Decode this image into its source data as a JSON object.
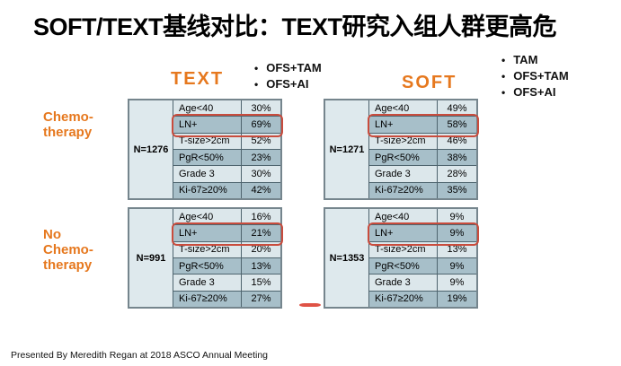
{
  "title": "SOFT/TEXT基线对比：TEXT研究入组人群更高危",
  "footer": "Presented By Meredith Regan at 2018 ASCO Annual Meeting",
  "colors": {
    "accent_orange": "#E6781E",
    "row_light": "#DCE7EB",
    "row_dark": "#A7BFC9",
    "grid_line": "#4E646E",
    "outer_border": "#75858D",
    "highlight_red": "#C94C3D"
  },
  "groups": {
    "text": {
      "label": "TEXT",
      "arms": [
        "OFS+TAM",
        "OFS+AI"
      ]
    },
    "soft": {
      "label": "SOFT",
      "arms": [
        "TAM",
        "OFS+TAM",
        "OFS+AI"
      ]
    }
  },
  "side_labels": {
    "chemo": [
      "Chemo-",
      "therapy"
    ],
    "no_chemo": [
      "No",
      "Chemo-",
      "therapy"
    ]
  },
  "tables": [
    {
      "group": "TEXT",
      "therapy": "Chemotherapy",
      "n": "N=1276",
      "rows": [
        {
          "label": "Age<40",
          "value": "30%"
        },
        {
          "label": "LN+",
          "value": "69%",
          "highlight": true
        },
        {
          "label": "T-size>2cm",
          "value": "52%"
        },
        {
          "label": "PgR<50%",
          "value": "23%"
        },
        {
          "label": "Grade 3",
          "value": "30%"
        },
        {
          "label": "Ki-67≥20%",
          "value": "42%"
        }
      ]
    },
    {
      "group": "SOFT",
      "therapy": "Chemotherapy",
      "n": "N=1271",
      "rows": [
        {
          "label": "Age<40",
          "value": "49%"
        },
        {
          "label": "LN+",
          "value": "58%",
          "highlight": true
        },
        {
          "label": "T-size>2cm",
          "value": "46%"
        },
        {
          "label": "PgR<50%",
          "value": "38%"
        },
        {
          "label": "Grade 3",
          "value": "28%"
        },
        {
          "label": "Ki-67≥20%",
          "value": "35%"
        }
      ]
    },
    {
      "group": "TEXT",
      "therapy": "No Chemotherapy",
      "n": "N=991",
      "rows": [
        {
          "label": "Age<40",
          "value": "16%"
        },
        {
          "label": "LN+",
          "value": "21%",
          "highlight": true
        },
        {
          "label": "T-size>2cm",
          "value": "20%"
        },
        {
          "label": "PgR<50%",
          "value": "13%"
        },
        {
          "label": "Grade 3",
          "value": "15%"
        },
        {
          "label": "Ki-67≥20%",
          "value": "27%"
        }
      ]
    },
    {
      "group": "SOFT",
      "therapy": "No Chemotherapy",
      "n": "N=1353",
      "rows": [
        {
          "label": "Age<40",
          "value": "9%"
        },
        {
          "label": "LN+",
          "value": "9%",
          "highlight": true
        },
        {
          "label": "T-size>2cm",
          "value": "13%"
        },
        {
          "label": "PgR<50%",
          "value": "9%"
        },
        {
          "label": "Grade 3",
          "value": "9%"
        },
        {
          "label": "Ki-67≥20%",
          "value": "19%"
        }
      ]
    }
  ]
}
